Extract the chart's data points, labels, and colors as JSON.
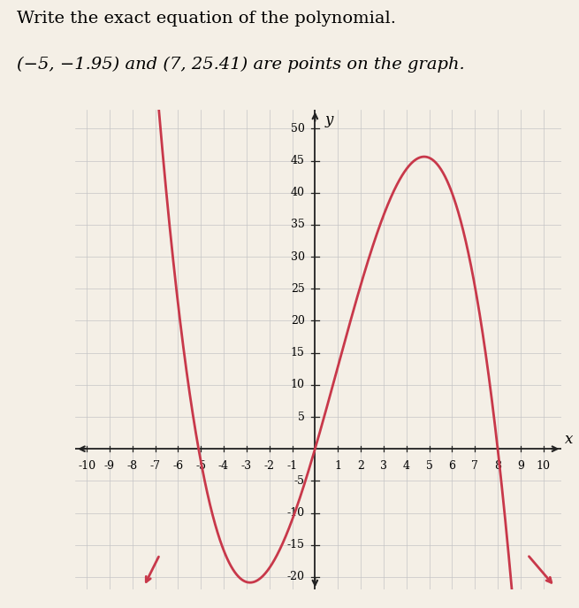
{
  "title": "Write the exact equation of the polynomial.",
  "subtitle": "(−5, −1.95) and (7, 25.41) are points on the graph.",
  "a": -0.3,
  "r1": -5.1,
  "r2": 0,
  "r3": 8,
  "xlim": [
    -10.5,
    10.8
  ],
  "ylim": [
    -22,
    53
  ],
  "xticks": [
    -10,
    -9,
    -8,
    -7,
    -6,
    -5,
    -4,
    -3,
    -2,
    -1,
    1,
    2,
    3,
    4,
    5,
    6,
    7,
    8,
    9,
    10
  ],
  "yticks": [
    -20,
    -15,
    -10,
    -5,
    5,
    10,
    15,
    20,
    25,
    30,
    35,
    40,
    45,
    50
  ],
  "xlabel": "x",
  "ylabel": "y",
  "curve_color": "#c8384a",
  "axis_color": "#222222",
  "grid_color": "#c5c5c5",
  "bg_color": "#f4efe6",
  "title_fontsize": 14,
  "subtitle_fontsize": 14,
  "tick_fontsize": 9
}
